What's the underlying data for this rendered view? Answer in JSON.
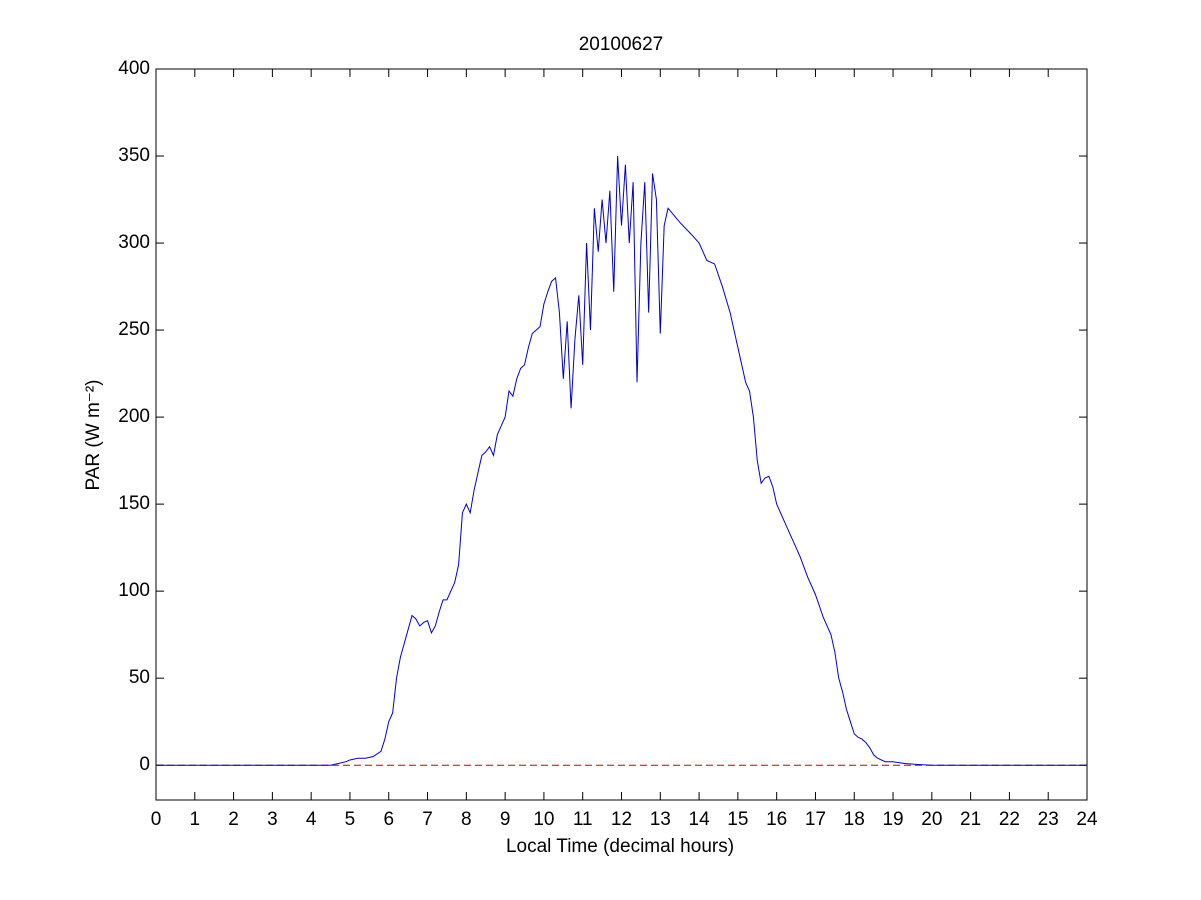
{
  "chart_data": {
    "type": "line",
    "title": "20100627",
    "x_label": "Local Time (decimal hours)",
    "y_label": "PAR (W m⁻²)",
    "xlim": [
      0,
      24
    ],
    "ylim": [
      -20,
      400
    ],
    "xticks": [
      0,
      1,
      2,
      3,
      4,
      5,
      6,
      7,
      8,
      9,
      10,
      11,
      12,
      13,
      14,
      15,
      16,
      17,
      18,
      19,
      20,
      21,
      22,
      23,
      24
    ],
    "yticks": [
      0,
      50,
      100,
      150,
      200,
      250,
      300,
      350,
      400
    ],
    "grid": false,
    "reference_lines": [
      {
        "y": 0,
        "color": "#cc0000",
        "style": "dashed"
      }
    ],
    "x": [
      0,
      4.5,
      4.7,
      4.9,
      5.0,
      5.2,
      5.4,
      5.6,
      5.8,
      5.9,
      6.0,
      6.1,
      6.2,
      6.3,
      6.4,
      6.5,
      6.6,
      6.7,
      6.8,
      6.9,
      7.0,
      7.1,
      7.2,
      7.3,
      7.4,
      7.5,
      7.6,
      7.7,
      7.8,
      7.9,
      8.0,
      8.1,
      8.2,
      8.3,
      8.4,
      8.5,
      8.6,
      8.7,
      8.8,
      8.9,
      9.0,
      9.1,
      9.2,
      9.3,
      9.4,
      9.5,
      9.6,
      9.7,
      9.8,
      9.9,
      10.0,
      10.1,
      10.2,
      10.3,
      10.4,
      10.5,
      10.6,
      10.7,
      10.8,
      10.9,
      11.0,
      11.1,
      11.2,
      11.3,
      11.4,
      11.5,
      11.6,
      11.7,
      11.8,
      11.9,
      12.0,
      12.1,
      12.2,
      12.3,
      12.4,
      12.5,
      12.6,
      12.7,
      12.8,
      12.9,
      13.0,
      13.1,
      13.2,
      13.5,
      13.8,
      14.0,
      14.2,
      14.4,
      14.6,
      14.8,
      15.0,
      15.1,
      15.2,
      15.3,
      15.4,
      15.5,
      15.6,
      15.7,
      15.8,
      15.9,
      16.0,
      16.2,
      16.4,
      16.6,
      16.8,
      17.0,
      17.2,
      17.4,
      17.5,
      17.6,
      17.7,
      17.8,
      17.9,
      18.0,
      18.1,
      18.2,
      18.3,
      18.4,
      18.5,
      18.6,
      18.8,
      19.0,
      19.3,
      19.6,
      20.0,
      24
    ],
    "series": [
      {
        "color": "#0000cc",
        "values": [
          0,
          0,
          1,
          2,
          3,
          4,
          4,
          5,
          8,
          15,
          25,
          30,
          50,
          62,
          70,
          78,
          86,
          84,
          80,
          82,
          83,
          76,
          80,
          88,
          95,
          95,
          100,
          105,
          115,
          145,
          150,
          145,
          158,
          168,
          178,
          180,
          183,
          178,
          190,
          195,
          200,
          215,
          212,
          222,
          228,
          230,
          240,
          248,
          250,
          252,
          265,
          272,
          278,
          280,
          260,
          222,
          255,
          205,
          245,
          270,
          230,
          300,
          250,
          320,
          295,
          325,
          300,
          330,
          272,
          350,
          310,
          345,
          300,
          335,
          220,
          300,
          335,
          260,
          340,
          325,
          248,
          310,
          320,
          312,
          305,
          300,
          290,
          288,
          275,
          260,
          240,
          230,
          220,
          215,
          200,
          175,
          162,
          165,
          166,
          160,
          150,
          140,
          130,
          120,
          108,
          98,
          85,
          75,
          65,
          50,
          42,
          32,
          25,
          18,
          16,
          15,
          13,
          10,
          6,
          4,
          2,
          2,
          1,
          0.5,
          0,
          0
        ]
      }
    ]
  }
}
